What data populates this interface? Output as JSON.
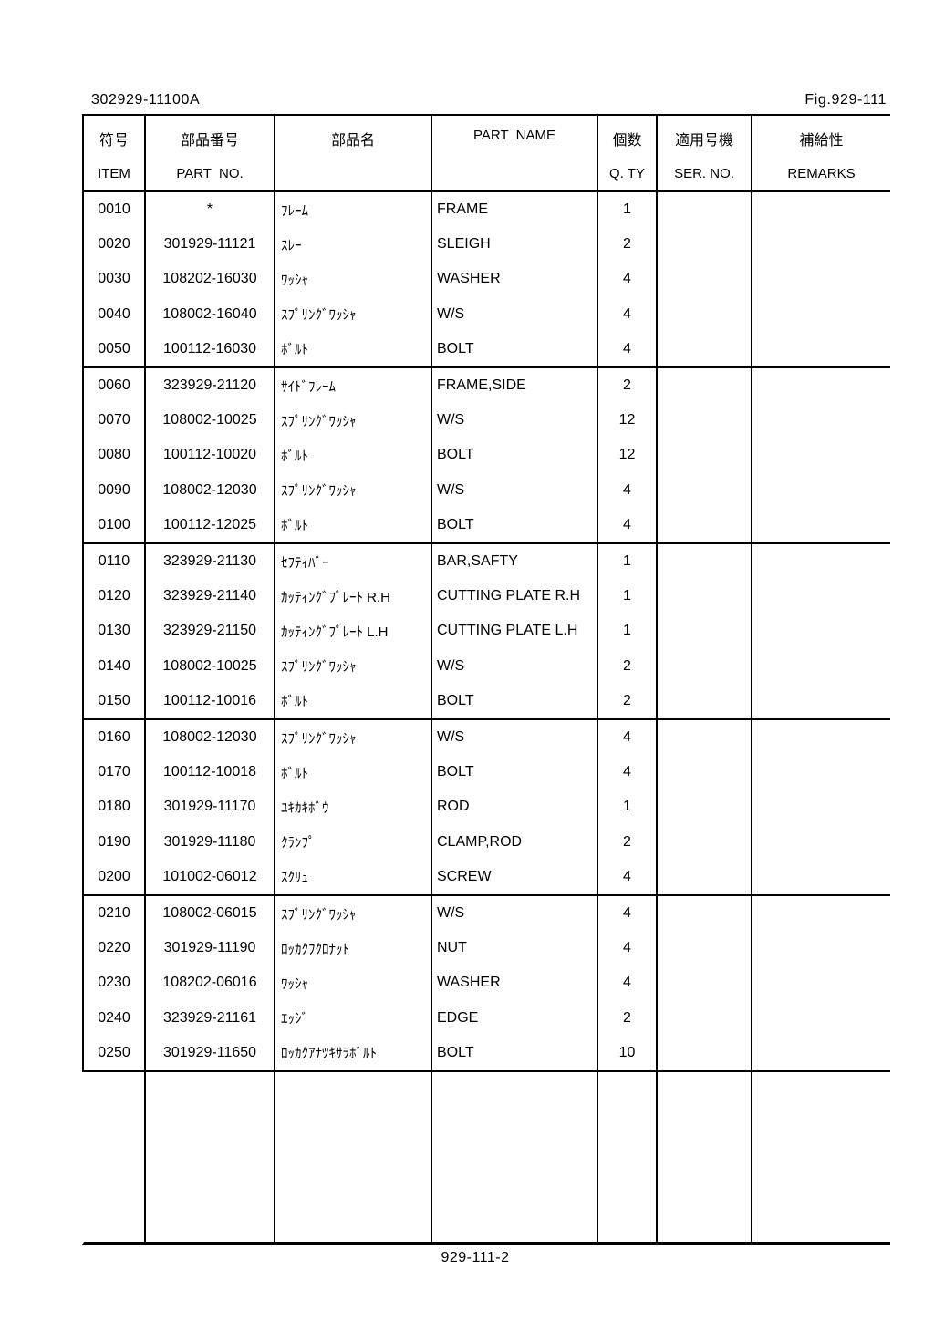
{
  "page": {
    "doc_no": "302929-11100A",
    "fig_no": "Fig.929-111",
    "page_no": "929-111-2"
  },
  "colors": {
    "ink": "#000000",
    "paper": "#ffffff"
  },
  "table": {
    "headers": {
      "item": {
        "jp": "符号",
        "en": "ITEM"
      },
      "part_no": {
        "jp": "部品番号",
        "en": "PART  NO."
      },
      "name_jp": {
        "jp": "部品名",
        "en": ""
      },
      "part_name": {
        "jp": "PART  NAME",
        "en": ""
      },
      "qty": {
        "jp": "個数",
        "en": "Q. TY"
      },
      "ser_no": {
        "jp": "適用号機",
        "en": "SER. NO."
      },
      "remarks": {
        "jp": "補給性",
        "en": "REMARKS"
      }
    },
    "groups": [
      {
        "rows": [
          {
            "item": "0010",
            "part_no": "*",
            "name_jp": "ﾌﾚｰﾑ",
            "part_name": "FRAME",
            "qty": "1",
            "ser_no": "",
            "remarks": ""
          },
          {
            "item": "0020",
            "part_no": "301929-11121",
            "name_jp": "ｽﾚｰ",
            "part_name": "SLEIGH",
            "qty": "2",
            "ser_no": "",
            "remarks": ""
          },
          {
            "item": "0030",
            "part_no": "108202-16030",
            "name_jp": "ﾜｯｼｬ",
            "part_name": "WASHER",
            "qty": "4",
            "ser_no": "",
            "remarks": ""
          },
          {
            "item": "0040",
            "part_no": "108002-16040",
            "name_jp": "ｽﾌﾟﾘﾝｸﾞﾜｯｼｬ",
            "part_name": "W/S",
            "qty": "4",
            "ser_no": "",
            "remarks": ""
          },
          {
            "item": "0050",
            "part_no": "100112-16030",
            "name_jp": "ﾎﾞﾙﾄ",
            "part_name": "BOLT",
            "qty": "4",
            "ser_no": "",
            "remarks": ""
          }
        ]
      },
      {
        "rows": [
          {
            "item": "0060",
            "part_no": "323929-21120",
            "name_jp": "ｻｲﾄﾞﾌﾚｰﾑ",
            "part_name": "FRAME,SIDE",
            "qty": "2",
            "ser_no": "",
            "remarks": ""
          },
          {
            "item": "0070",
            "part_no": "108002-10025",
            "name_jp": "ｽﾌﾟﾘﾝｸﾞﾜｯｼｬ",
            "part_name": "W/S",
            "qty": "12",
            "ser_no": "",
            "remarks": ""
          },
          {
            "item": "0080",
            "part_no": "100112-10020",
            "name_jp": "ﾎﾞﾙﾄ",
            "part_name": "BOLT",
            "qty": "12",
            "ser_no": "",
            "remarks": ""
          },
          {
            "item": "0090",
            "part_no": "108002-12030",
            "name_jp": "ｽﾌﾟﾘﾝｸﾞﾜｯｼｬ",
            "part_name": "W/S",
            "qty": "4",
            "ser_no": "",
            "remarks": ""
          },
          {
            "item": "0100",
            "part_no": "100112-12025",
            "name_jp": "ﾎﾞﾙﾄ",
            "part_name": "BOLT",
            "qty": "4",
            "ser_no": "",
            "remarks": ""
          }
        ]
      },
      {
        "rows": [
          {
            "item": "0110",
            "part_no": "323929-21130",
            "name_jp": "ｾﾌﾃｨﾊﾞｰ",
            "part_name": "BAR,SAFTY",
            "qty": "1",
            "ser_no": "",
            "remarks": ""
          },
          {
            "item": "0120",
            "part_no": "323929-21140",
            "name_jp": "ｶｯﾃｨﾝｸﾞﾌﾟﾚｰﾄ R.H",
            "part_name": "CUTTING PLATE R.H",
            "qty": "1",
            "ser_no": "",
            "remarks": ""
          },
          {
            "item": "0130",
            "part_no": "323929-21150",
            "name_jp": "ｶｯﾃｨﾝｸﾞﾌﾟﾚｰﾄ L.H",
            "part_name": "CUTTING PLATE L.H",
            "qty": "1",
            "ser_no": "",
            "remarks": ""
          },
          {
            "item": "0140",
            "part_no": "108002-10025",
            "name_jp": "ｽﾌﾟﾘﾝｸﾞﾜｯｼｬ",
            "part_name": "W/S",
            "qty": "2",
            "ser_no": "",
            "remarks": ""
          },
          {
            "item": "0150",
            "part_no": "100112-10016",
            "name_jp": "ﾎﾞﾙﾄ",
            "part_name": "BOLT",
            "qty": "2",
            "ser_no": "",
            "remarks": ""
          }
        ]
      },
      {
        "rows": [
          {
            "item": "0160",
            "part_no": "108002-12030",
            "name_jp": "ｽﾌﾟﾘﾝｸﾞﾜｯｼｬ",
            "part_name": "W/S",
            "qty": "4",
            "ser_no": "",
            "remarks": ""
          },
          {
            "item": "0170",
            "part_no": "100112-10018",
            "name_jp": "ﾎﾞﾙﾄ",
            "part_name": "BOLT",
            "qty": "4",
            "ser_no": "",
            "remarks": ""
          },
          {
            "item": "0180",
            "part_no": "301929-11170",
            "name_jp": "ﾕｷｶｷﾎﾞｳ",
            "part_name": "ROD",
            "qty": "1",
            "ser_no": "",
            "remarks": ""
          },
          {
            "item": "0190",
            "part_no": "301929-11180",
            "name_jp": "ｸﾗﾝﾌﾟ",
            "part_name": "CLAMP,ROD",
            "qty": "2",
            "ser_no": "",
            "remarks": ""
          },
          {
            "item": "0200",
            "part_no": "101002-06012",
            "name_jp": "ｽｸﾘｭ",
            "part_name": "SCREW",
            "qty": "4",
            "ser_no": "",
            "remarks": ""
          }
        ]
      },
      {
        "rows": [
          {
            "item": "0210",
            "part_no": "108002-06015",
            "name_jp": "ｽﾌﾟﾘﾝｸﾞﾜｯｼｬ",
            "part_name": "W/S",
            "qty": "4",
            "ser_no": "",
            "remarks": ""
          },
          {
            "item": "0220",
            "part_no": "301929-11190",
            "name_jp": "ﾛｯｶｸﾌｸﾛﾅｯﾄ",
            "part_name": "NUT",
            "qty": "4",
            "ser_no": "",
            "remarks": ""
          },
          {
            "item": "0230",
            "part_no": "108202-06016",
            "name_jp": "ﾜｯｼｬ",
            "part_name": "WASHER",
            "qty": "4",
            "ser_no": "",
            "remarks": ""
          },
          {
            "item": "0240",
            "part_no": "323929-21161",
            "name_jp": "ｴｯｼﾞ",
            "part_name": "EDGE",
            "qty": "2",
            "ser_no": "",
            "remarks": ""
          },
          {
            "item": "0250",
            "part_no": "301929-11650",
            "name_jp": "ﾛｯｶｸｱﾅﾂｷｻﾗﾎﾞﾙﾄ",
            "part_name": "BOLT",
            "qty": "10",
            "ser_no": "",
            "remarks": ""
          }
        ]
      }
    ]
  }
}
